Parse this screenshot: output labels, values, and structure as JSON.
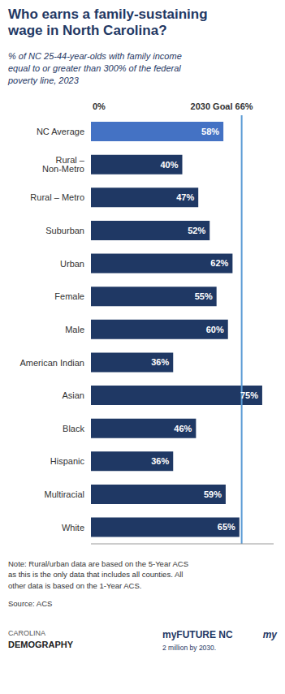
{
  "chart_data": {
    "type": "bar",
    "orientation": "horizontal",
    "title": "Who earns a family-sustaining\nwage in North Carolina?",
    "subtitle": "% of NC 25-44-year-olds with family income\nequal to or greater than 300% of the federal\npoverty line, 2023",
    "categories": [
      "NC Average",
      "Rural – Non-Metro",
      "Rural – Metro",
      "Suburban",
      "Urban",
      "Female",
      "Male",
      "American Indian",
      "Asian",
      "Black",
      "Hispanic",
      "Multiracial",
      "White"
    ],
    "values": [
      58,
      40,
      47,
      52,
      62,
      55,
      60,
      36,
      75,
      46,
      36,
      59,
      65
    ],
    "value_labels": [
      "58%",
      "40%",
      "47%",
      "52%",
      "62%",
      "55%",
      "60%",
      "36%",
      "75%",
      "46%",
      "36%",
      "59%",
      "65%"
    ],
    "data_labels": true,
    "colors": [
      "#4472c4",
      "#1f3864",
      "#1f3864",
      "#1f3864",
      "#1f3864",
      "#1f3864",
      "#1f3864",
      "#1f3864",
      "#1f3864",
      "#1f3864",
      "#1f3864",
      "#1f3864",
      "#1f3864"
    ],
    "xlim": [
      0,
      80
    ],
    "tick_labels": "y",
    "grid": false,
    "reference_line": {
      "value": 66,
      "label": "2030 Goal 66%",
      "color": "#5b9bd5"
    },
    "note": "Note: Rural/urban data are based on the 5-Year ACS\nas this is the only data that includes all counties. All\nother data is based on the 1-Year ACS.",
    "source": "Source: ACS",
    "annotations": [
      "0%",
      "CAROLINA",
      "DEMOGRAPHY",
      "my",
      "myFUTURE NC",
      "2 million by 2030."
    ]
  }
}
